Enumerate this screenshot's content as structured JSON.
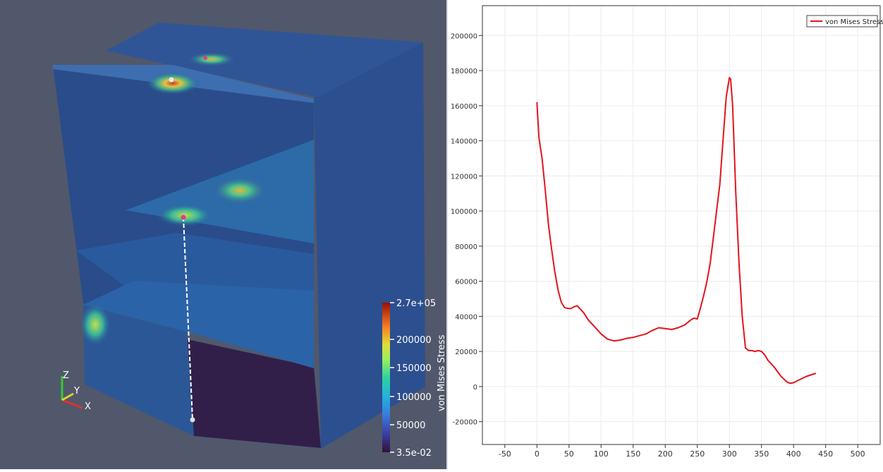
{
  "viewport_3d": {
    "colorbar": {
      "title": "von Mises Stress",
      "max_label": "2.7e+05",
      "min_label": "3.5e-02",
      "tick_labels": [
        "200000",
        "150000",
        "100000",
        "50000"
      ]
    },
    "axes_triad": {
      "x": "X",
      "y": "Y",
      "z": "Z"
    }
  },
  "chart_data": {
    "type": "line",
    "title": "",
    "xlabel": "",
    "ylabel": "",
    "xlim": [
      -85,
      535
    ],
    "ylim": [
      -33000,
      217000
    ],
    "grid": true,
    "legend_position": "top-right",
    "x_tick_labels": [
      "-50",
      "0",
      "50",
      "100",
      "150",
      "200",
      "250",
      "300",
      "350",
      "400",
      "450",
      "500"
    ],
    "y_tick_labels": [
      "200000",
      "180000",
      "160000",
      "140000",
      "120000",
      "100000",
      "80000",
      "60000",
      "40000",
      "20000",
      "0",
      "-20000"
    ],
    "series": [
      {
        "name": "von Mises Stress",
        "color": "#e3141c",
        "x": [
          0,
          3,
          8,
          13,
          18,
          23,
          28,
          33,
          38,
          43,
          48,
          53,
          58,
          63,
          68,
          73,
          80,
          90,
          100,
          110,
          120,
          130,
          140,
          150,
          160,
          170,
          180,
          190,
          200,
          210,
          220,
          230,
          240,
          245,
          250,
          255,
          260,
          265,
          270,
          275,
          280,
          285,
          290,
          295,
          300,
          302,
          305,
          310,
          315,
          320,
          325,
          330,
          335,
          340,
          345,
          350,
          355,
          360,
          370,
          380,
          390,
          395,
          400,
          410,
          420,
          430,
          435
        ],
        "y": [
          162000,
          142000,
          130000,
          112000,
          92000,
          78000,
          65000,
          55000,
          48000,
          45000,
          44500,
          44500,
          45500,
          46000,
          44000,
          42000,
          38000,
          34000,
          30000,
          27000,
          26000,
          26500,
          27500,
          28000,
          29000,
          30000,
          32000,
          33500,
          33000,
          32500,
          33500,
          35000,
          38000,
          39000,
          38500,
          45000,
          52000,
          60000,
          70000,
          85000,
          100000,
          115000,
          140000,
          165000,
          176000,
          175000,
          160000,
          110000,
          70000,
          40000,
          22000,
          20500,
          20500,
          20000,
          20500,
          20000,
          18000,
          15000,
          11000,
          6000,
          2500,
          1800,
          2200,
          4000,
          5800,
          7000,
          7500
        ]
      }
    ]
  }
}
